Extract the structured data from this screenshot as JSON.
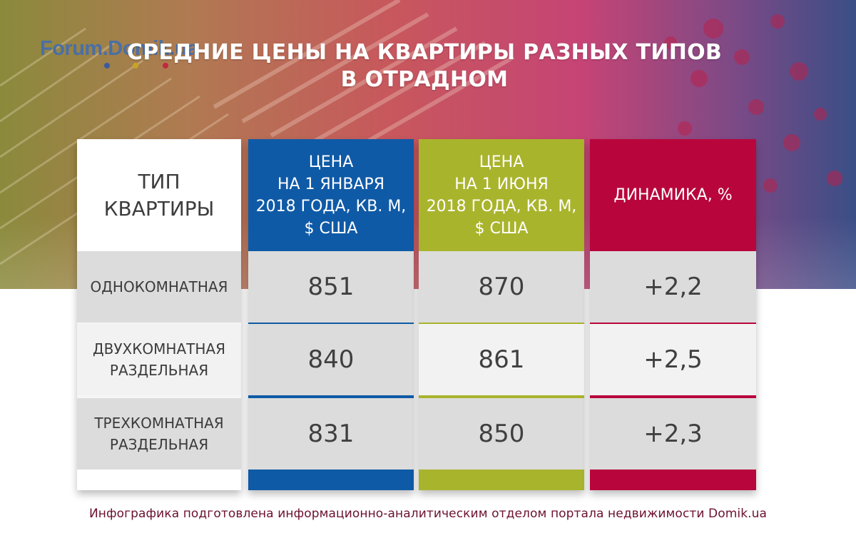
{
  "logo": {
    "text": "Forum.Domik.ua"
  },
  "title": {
    "line1": "СРЕДНИЕ ЦЕНЫ НА КВАРТИРЫ РАЗНЫХ ТИПОВ",
    "line2": "В ОТРАДНОМ"
  },
  "colors": {
    "blue": "#0f5aa6",
    "green": "#a9b42d",
    "red": "#b8063c",
    "cell_gray": "#dcdcdc",
    "cell_light": "#f2f2f2"
  },
  "chart_data": {
    "type": "table",
    "columns": [
      {
        "lines": [
          "ТИП",
          "КВАРТИРЫ"
        ]
      },
      {
        "lines": [
          "ЦЕНА",
          "НА 1 ЯНВАРЯ",
          "2018 ГОДА, КВ. М,",
          "$ США"
        ]
      },
      {
        "lines": [
          "ЦЕНА",
          "НА 1 ИЮНЯ",
          "2018 ГОДА, КВ. М,",
          "$ США"
        ]
      },
      {
        "lines": [
          "ДИНАМИКА, %"
        ]
      }
    ],
    "rows": [
      {
        "type_lines": [
          "ОДНОКОМНАТНАЯ"
        ],
        "jan": "851",
        "jun": "870",
        "change": "+2,2"
      },
      {
        "type_lines": [
          "ДВУХКОМНАТНАЯ",
          "РАЗДЕЛЬНАЯ"
        ],
        "jan": "840",
        "jun": "861",
        "change": "+2,5"
      },
      {
        "type_lines": [
          "ТРЕХКОМНАТНАЯ",
          "РАЗДЕЛЬНАЯ"
        ],
        "jan": "831",
        "jun": "850",
        "change": "+2,3"
      }
    ]
  },
  "footer": {
    "text": "Инфографика подготовлена информационно-аналитическим отделом портала недвижимости Domik.ua"
  }
}
